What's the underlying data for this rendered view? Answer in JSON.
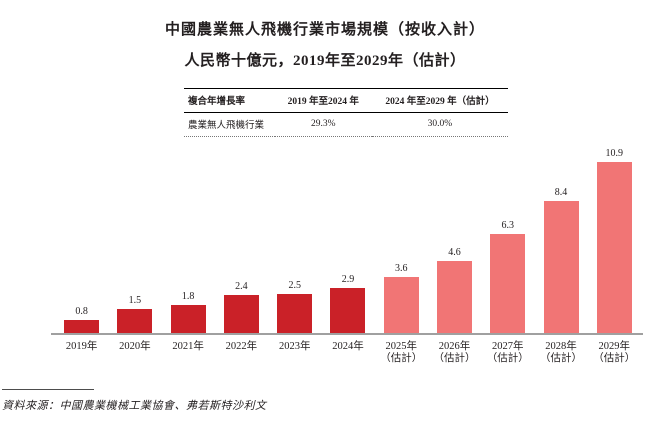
{
  "title": "中國農業無人飛機行業市場規模（按收入計）",
  "subtitle": "人民幣十億元，2019年至2029年（估計）",
  "cagr_table": {
    "headers": [
      "複合年增長率",
      "2019 年至2024 年",
      "2024 年至2029 年（估計）"
    ],
    "rows": [
      {
        "label": "農業無人飛機行業",
        "values": [
          "29.3%",
          "30.0%"
        ]
      }
    ]
  },
  "source": "資料來源：中國農業機械工業協會、弗若斯特沙利文",
  "chart_data": {
    "type": "bar",
    "title": "中國農業無人飛機行業市場規模（按收入計）",
    "subtitle": "人民幣十億元，2019年至2029年（估計）",
    "unit": "人民幣十億元",
    "categories": [
      "2019年",
      "2020年",
      "2021年",
      "2022年",
      "2023年",
      "2024年",
      "2025年（估計）",
      "2026年（估計）",
      "2027年（估計）",
      "2028年（估計）",
      "2029年（估計）"
    ],
    "values": [
      0.8,
      1.5,
      1.8,
      2.4,
      2.5,
      2.9,
      3.6,
      4.6,
      6.3,
      8.4,
      10.9
    ],
    "bars": [
      {
        "label": "2019年",
        "note": "",
        "value": 0.8,
        "segment": "historical"
      },
      {
        "label": "2020年",
        "note": "",
        "value": 1.5,
        "segment": "historical"
      },
      {
        "label": "2021年",
        "note": "",
        "value": 1.8,
        "segment": "historical"
      },
      {
        "label": "2022年",
        "note": "",
        "value": 2.4,
        "segment": "historical"
      },
      {
        "label": "2023年",
        "note": "",
        "value": 2.5,
        "segment": "historical"
      },
      {
        "label": "2024年",
        "note": "",
        "value": 2.9,
        "segment": "historical"
      },
      {
        "label": "2025年",
        "note": "（估計）",
        "value": 3.6,
        "segment": "estimate"
      },
      {
        "label": "2026年",
        "note": "（估計）",
        "value": 4.6,
        "segment": "estimate"
      },
      {
        "label": "2027年",
        "note": "（估計）",
        "value": 6.3,
        "segment": "estimate"
      },
      {
        "label": "2028年",
        "note": "（估計）",
        "value": 8.4,
        "segment": "estimate"
      },
      {
        "label": "2029年",
        "note": "（估計）",
        "value": 10.9,
        "segment": "estimate"
      }
    ],
    "colors": {
      "historical": "#CA2128",
      "estimate": "#F17575",
      "baseline": "#A0A0A0"
    },
    "ylim": [
      0,
      11.5
    ],
    "grid": false,
    "legend": "none",
    "data_labels": true
  }
}
